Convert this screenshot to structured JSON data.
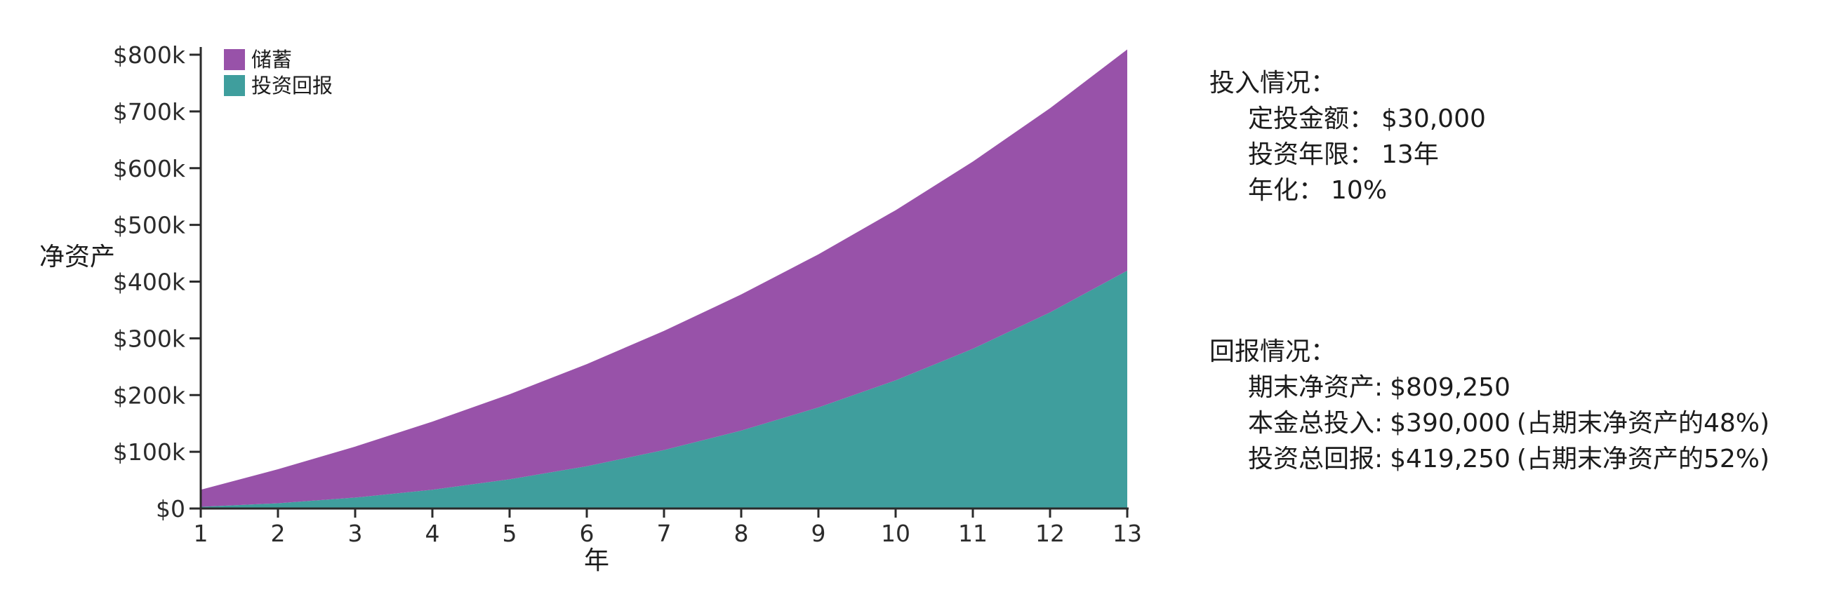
{
  "chart_data": {
    "type": "area",
    "stacked": true,
    "title": "",
    "x_label": "年",
    "y_label": "净资产",
    "x": [
      1,
      2,
      3,
      4,
      5,
      6,
      7,
      8,
      9,
      10,
      11,
      12,
      13
    ],
    "series": [
      {
        "name": "投资回报",
        "color": "#3f9e9d",
        "values": [
          3000,
          9300,
          19230,
          33153,
          51468,
          74615,
          103077,
          137384,
          178123,
          225935,
          281529,
          345681,
          419250
        ]
      },
      {
        "name": "储蓄",
        "color": "#9852a9",
        "values": [
          30000,
          60000,
          90000,
          120000,
          150000,
          180000,
          210000,
          240000,
          270000,
          300000,
          330000,
          360000,
          390000
        ]
      }
    ],
    "legend": [
      {
        "label": "储蓄",
        "color": "#9852a9"
      },
      {
        "label": "投资回报",
        "color": "#3f9e9d"
      }
    ],
    "legend_position": "upper-left",
    "grid": false,
    "axis_color": "#2b2b2b",
    "ylim": [
      0,
      809250
    ],
    "y_ticks": [
      {
        "label": "$0",
        "value": 0
      },
      {
        "label": "$100k",
        "value": 100000
      },
      {
        "label": "$200k",
        "value": 200000
      },
      {
        "label": "$300k",
        "value": 300000
      },
      {
        "label": "$400k",
        "value": 400000
      },
      {
        "label": "$500k",
        "value": 500000
      },
      {
        "label": "$600k",
        "value": 600000
      },
      {
        "label": "$700k",
        "value": 700000
      },
      {
        "label": "$800k",
        "value": 800000
      }
    ],
    "x_ticks": [
      "1",
      "2",
      "3",
      "4",
      "5",
      "6",
      "7",
      "8",
      "9",
      "10",
      "11",
      "12",
      "13"
    ]
  },
  "summary": {
    "input": {
      "title": "投入情况：",
      "items": [
        {
          "label": "定投金额：",
          "value": "$30,000"
        },
        {
          "label": "投资年限：",
          "value": "13年"
        },
        {
          "label": "年化：",
          "value": "10%"
        }
      ]
    },
    "returns": {
      "title": "回报情况：",
      "items": [
        {
          "label": "期末净资产:",
          "value": "$809,250",
          "note": ""
        },
        {
          "label": "本金总投入:",
          "value": "$390,000",
          "note": "(占期末净资产的48%)"
        },
        {
          "label": "投资总回报:",
          "value": "$419,250",
          "note": "(占期末净资产的52%)"
        }
      ]
    }
  }
}
